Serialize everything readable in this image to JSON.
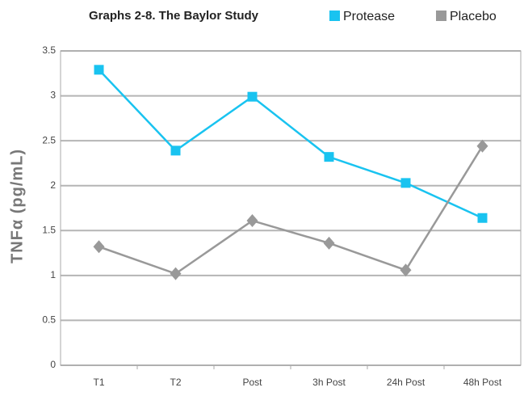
{
  "chart_data": {
    "type": "line",
    "title": "Graphs 2-8. The Baylor Study",
    "y_label": "TNFα (pg/mL)",
    "categories": [
      "T1",
      "T2",
      "Post",
      "3h Post",
      "24h Post",
      "48h Post"
    ],
    "series": [
      {
        "name": "Protease",
        "color": "#19c3f0",
        "marker": "square",
        "values": [
          3.29,
          2.39,
          2.99,
          2.32,
          2.03,
          1.64
        ]
      },
      {
        "name": "Placebo",
        "color": "#999999",
        "marker": "diamond",
        "values": [
          1.32,
          1.02,
          1.61,
          1.36,
          1.06,
          2.44
        ]
      }
    ],
    "ylim": [
      0,
      3.5
    ],
    "yticks": [
      0,
      0.5,
      1,
      1.5,
      2,
      2.5,
      3,
      3.5
    ],
    "grid": true
  }
}
